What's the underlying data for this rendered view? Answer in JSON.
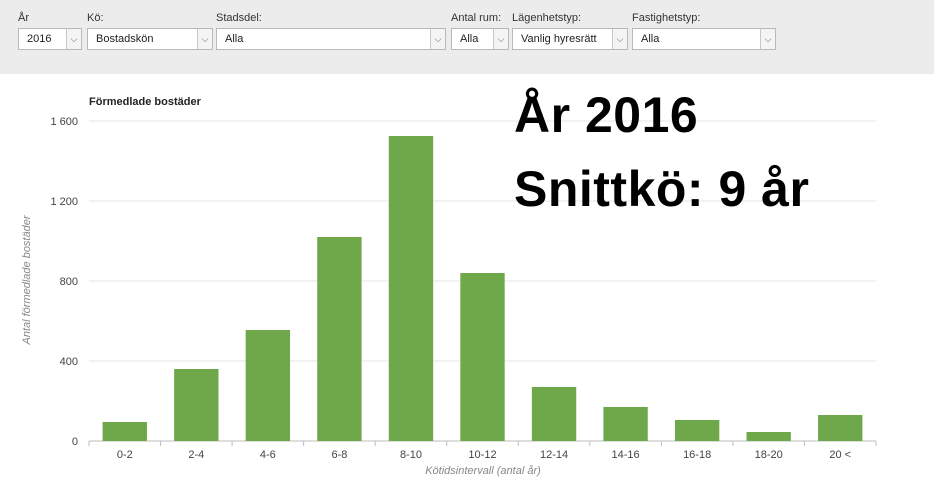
{
  "filters": [
    {
      "label": "År",
      "value": "2016"
    },
    {
      "label": "Kö:",
      "value": "Bostadskön"
    },
    {
      "label": "Stadsdel:",
      "value": "Alla"
    },
    {
      "label": "Antal rum:",
      "value": "Alla"
    },
    {
      "label": "Lägenhetstyp:",
      "value": "Vanlig hyresrätt"
    },
    {
      "label": "Fastighetstyp:",
      "value": "Alla"
    }
  ],
  "overlay": {
    "year_text": "År 2016",
    "queue_text": "Snittkö: 9 år"
  },
  "chart_data": {
    "type": "bar",
    "title": "Förmedlade bostäder",
    "xlabel": "Kötidsintervall (antal år)",
    "ylabel": "Antal förmedlade bostäder",
    "categories": [
      "0-2",
      "2-4",
      "4-6",
      "6-8",
      "8-10",
      "10-12",
      "12-14",
      "14-16",
      "16-18",
      "18-20",
      "20 <"
    ],
    "values": [
      95,
      360,
      555,
      1020,
      1525,
      840,
      270,
      170,
      105,
      45,
      130
    ],
    "ylim": [
      0,
      1600
    ],
    "yticks": [
      0,
      400,
      800,
      1200,
      1600
    ],
    "ytick_labels": [
      "0",
      "400",
      "800",
      "1 200",
      "1 600"
    ],
    "grid": true,
    "legend": "none",
    "bar_color": "#6fa84a",
    "grid_color": "#e4e4e4",
    "axis_color": "#bdbdbd"
  }
}
